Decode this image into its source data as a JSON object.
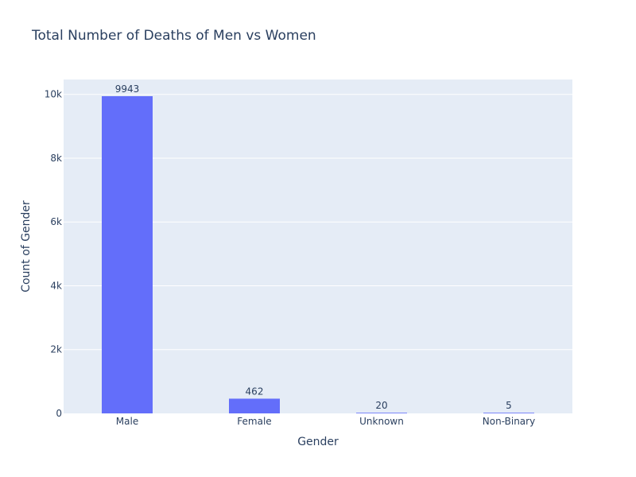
{
  "chart_data": {
    "type": "bar",
    "title": "Total Number of Deaths of Men vs Women",
    "xlabel": "Gender",
    "ylabel": "Count of Gender",
    "categories": [
      "Male",
      "Female",
      "Unknown",
      "Non-Binary"
    ],
    "values": [
      9943,
      462,
      20,
      5
    ],
    "data_labels": [
      "9943",
      "462",
      "20",
      "5"
    ],
    "ylim": [
      0,
      10466
    ],
    "yticks": [
      0,
      2000,
      4000,
      6000,
      8000,
      10000
    ],
    "ytick_labels": [
      "0",
      "2k",
      "4k",
      "6k",
      "8k",
      "10k"
    ],
    "grid": true,
    "bar_color": "#636efa",
    "plot_bg_color": "#e5ecf6"
  }
}
